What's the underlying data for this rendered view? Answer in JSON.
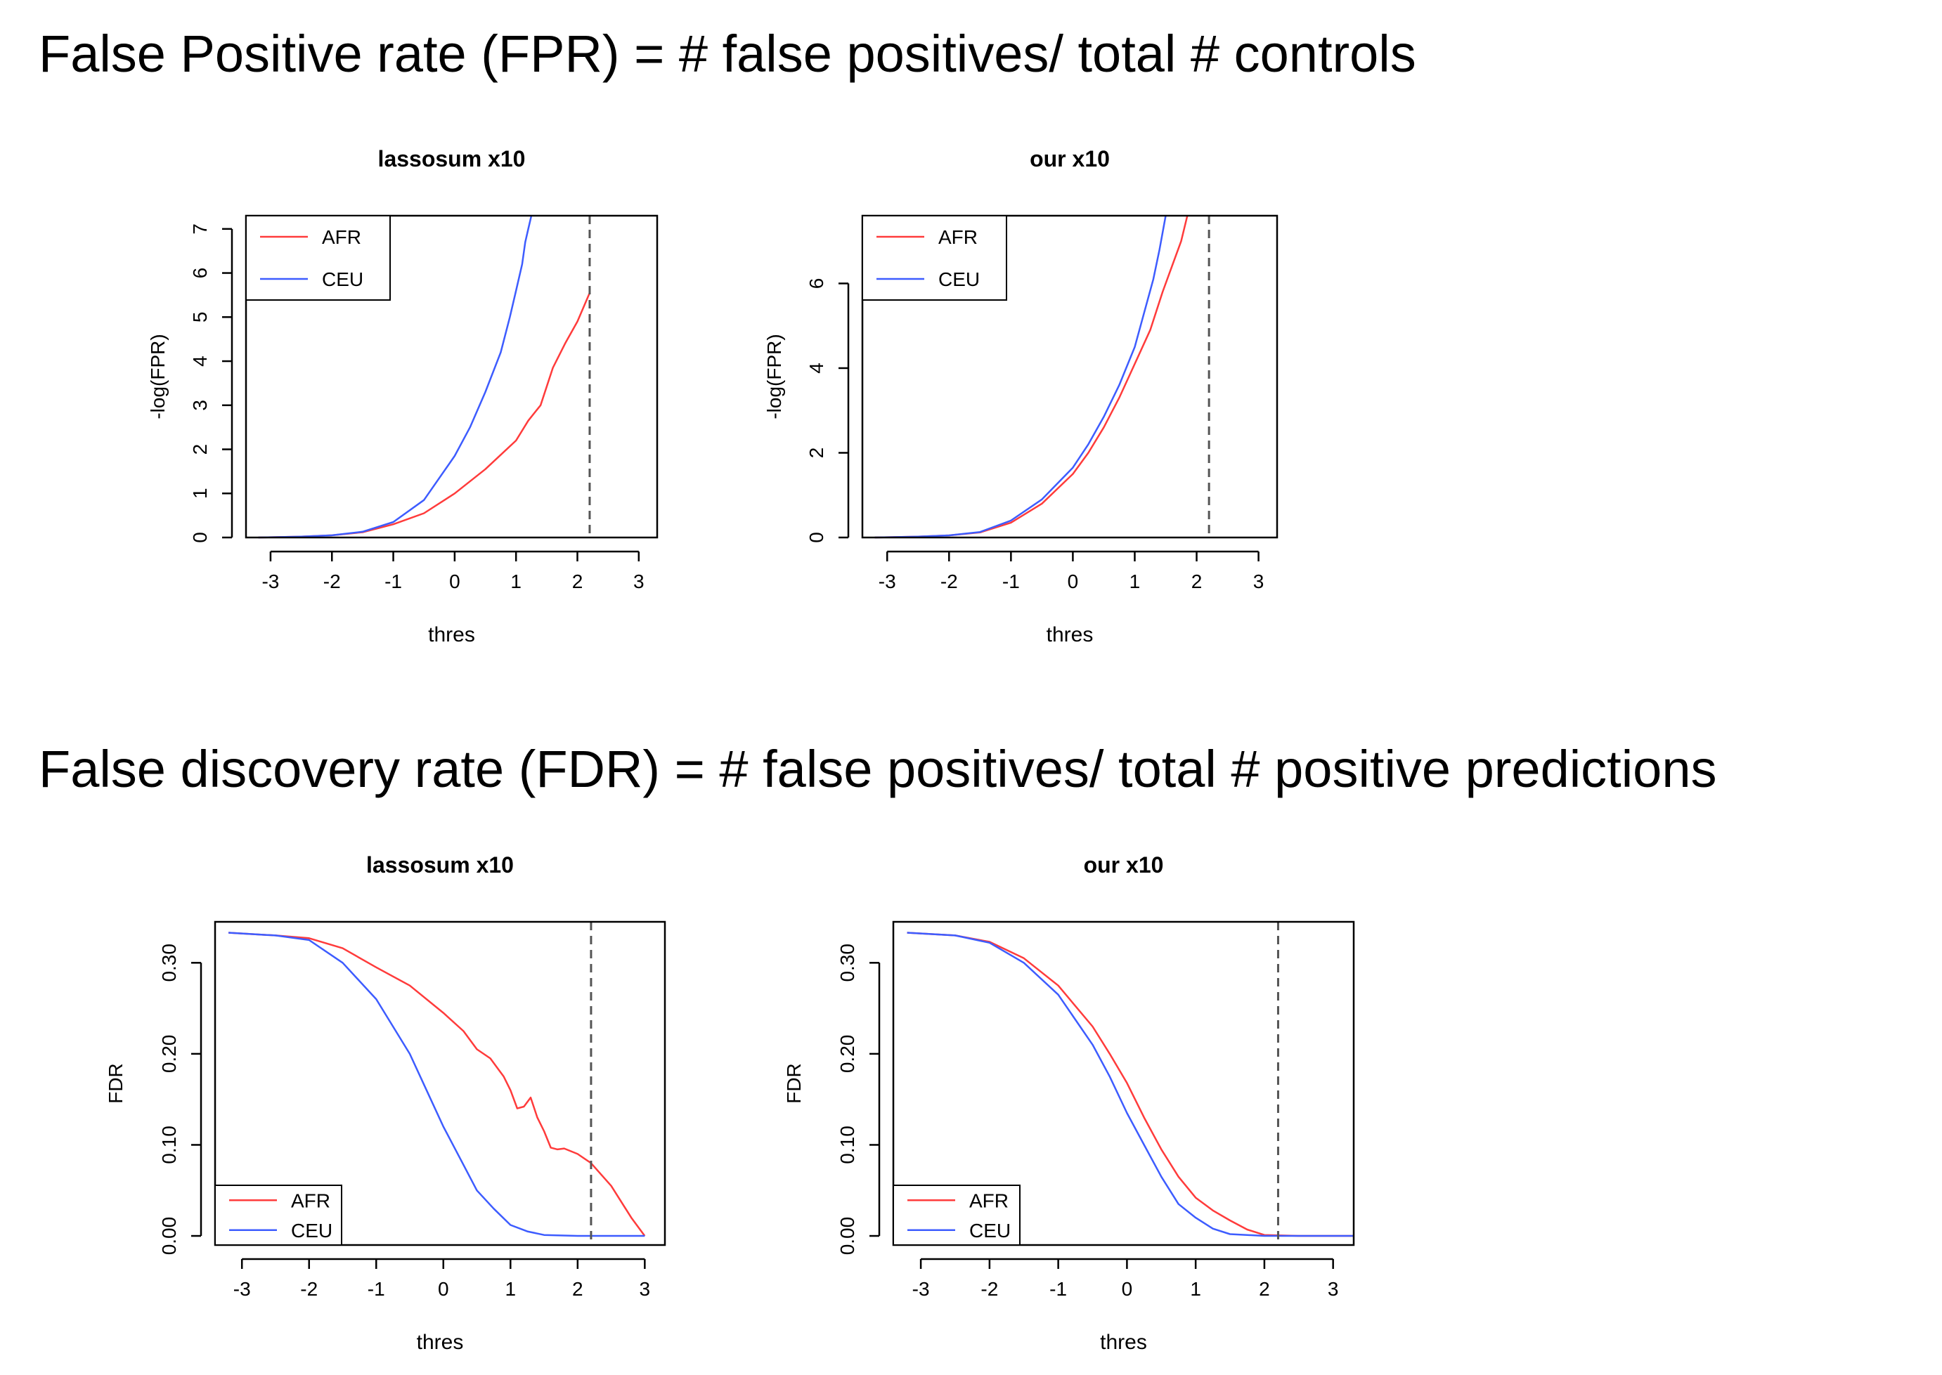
{
  "headlines": {
    "fpr": "False Positive rate (FPR) = # false positives/ total # controls",
    "fdr": "False discovery rate (FDR) = # false positives/ total # positive predictions"
  },
  "colors": {
    "AFR": "#ff3b3b",
    "CEU": "#3d5cff",
    "threshold": "#555555",
    "frame": "#000000"
  },
  "chart_data": [
    {
      "type": "line",
      "title": "lassosum x10",
      "xlabel": "thres",
      "ylabel": "-log(FPR)",
      "xlim": [
        -3.4,
        3.3
      ],
      "ylim": [
        0,
        7.3
      ],
      "xticks": [
        "-3",
        "-2",
        "-1",
        "0",
        "1",
        "2",
        "3"
      ],
      "yticks": [
        "0",
        "1",
        "2",
        "3",
        "4",
        "5",
        "6",
        "7"
      ],
      "threshold_line": 2.2,
      "legend": {
        "position": "top-left",
        "entries": [
          "AFR",
          "CEU"
        ]
      },
      "series": [
        {
          "name": "AFR",
          "x": [
            -3.2,
            -2.5,
            -2.0,
            -1.5,
            -1.0,
            -0.5,
            0.0,
            0.5,
            1.0,
            1.2,
            1.4,
            1.6,
            1.8,
            2.0,
            2.2
          ],
          "y": [
            0,
            0.02,
            0.05,
            0.12,
            0.3,
            0.55,
            1.0,
            1.55,
            2.2,
            2.65,
            3.0,
            3.85,
            4.4,
            4.9,
            5.55
          ]
        },
        {
          "name": "CEU",
          "x": [
            -3.2,
            -2.5,
            -2.0,
            -1.5,
            -1.0,
            -0.5,
            0.0,
            0.25,
            0.5,
            0.75,
            0.9,
            1.0,
            1.1,
            1.15,
            1.2,
            1.25
          ],
          "y": [
            0,
            0.02,
            0.05,
            0.13,
            0.35,
            0.85,
            1.85,
            2.5,
            3.3,
            4.2,
            5.0,
            5.6,
            6.2,
            6.7,
            7.0,
            7.3
          ]
        }
      ]
    },
    {
      "type": "line",
      "title": "our x10",
      "xlabel": "thres",
      "ylabel": "-log(FPR)",
      "xlim": [
        -3.4,
        3.3
      ],
      "ylim": [
        0,
        7.6
      ],
      "xticks": [
        "-3",
        "-2",
        "-1",
        "0",
        "1",
        "2",
        "3"
      ],
      "yticks": [
        "0",
        "2",
        "4",
        "6"
      ],
      "threshold_line": 2.2,
      "legend": {
        "position": "top-left",
        "entries": [
          "AFR",
          "CEU"
        ]
      },
      "series": [
        {
          "name": "AFR",
          "x": [
            -3.2,
            -2.5,
            -2.0,
            -1.5,
            -1.0,
            -0.5,
            0.0,
            0.25,
            0.5,
            0.75,
            1.0,
            1.25,
            1.45,
            1.6,
            1.75,
            1.85
          ],
          "y": [
            0,
            0.02,
            0.05,
            0.12,
            0.35,
            0.8,
            1.5,
            2.0,
            2.6,
            3.3,
            4.1,
            4.9,
            5.8,
            6.4,
            7.0,
            7.6
          ]
        },
        {
          "name": "CEU",
          "x": [
            -3.2,
            -2.5,
            -2.0,
            -1.5,
            -1.0,
            -0.5,
            0.0,
            0.25,
            0.5,
            0.75,
            1.0,
            1.15,
            1.3,
            1.4,
            1.5
          ],
          "y": [
            0,
            0.02,
            0.05,
            0.13,
            0.4,
            0.9,
            1.65,
            2.2,
            2.85,
            3.6,
            4.5,
            5.3,
            6.1,
            6.8,
            7.6
          ]
        }
      ]
    },
    {
      "type": "line",
      "title": "lassosum x10",
      "xlabel": "thres",
      "ylabel": "FDR",
      "xlim": [
        -3.4,
        3.3
      ],
      "ylim": [
        -0.01,
        0.345
      ],
      "xticks": [
        "-3",
        "-2",
        "-1",
        "0",
        "1",
        "2",
        "3"
      ],
      "yticks": [
        "0.00",
        "0.10",
        "0.20",
        "0.30"
      ],
      "threshold_line": 2.2,
      "legend": {
        "position": "bottom-left",
        "entries": [
          "AFR",
          "CEU"
        ]
      },
      "series": [
        {
          "name": "AFR",
          "x": [
            -3.2,
            -2.5,
            -2.0,
            -1.5,
            -1.0,
            -0.5,
            0.0,
            0.3,
            0.5,
            0.7,
            0.9,
            1.0,
            1.1,
            1.2,
            1.3,
            1.4,
            1.5,
            1.6,
            1.7,
            1.8,
            2.0,
            2.2,
            2.5,
            2.8,
            3.0
          ],
          "y": [
            0.333,
            0.33,
            0.327,
            0.316,
            0.295,
            0.275,
            0.245,
            0.225,
            0.205,
            0.195,
            0.175,
            0.16,
            0.14,
            0.142,
            0.152,
            0.13,
            0.115,
            0.097,
            0.095,
            0.096,
            0.09,
            0.08,
            0.055,
            0.02,
            0.0
          ]
        },
        {
          "name": "CEU",
          "x": [
            -3.2,
            -2.5,
            -2.0,
            -1.5,
            -1.0,
            -0.5,
            -0.25,
            0.0,
            0.25,
            0.5,
            0.75,
            1.0,
            1.25,
            1.5,
            2.0,
            2.5,
            3.0
          ],
          "y": [
            0.333,
            0.33,
            0.325,
            0.3,
            0.26,
            0.2,
            0.16,
            0.12,
            0.085,
            0.05,
            0.03,
            0.012,
            0.005,
            0.001,
            0.0,
            0.0,
            0.0
          ]
        }
      ]
    },
    {
      "type": "line",
      "title": "our x10",
      "xlabel": "thres",
      "ylabel": "FDR",
      "xlim": [
        -3.4,
        3.3
      ],
      "ylim": [
        -0.01,
        0.345
      ],
      "xticks": [
        "-3",
        "-2",
        "-1",
        "0",
        "1",
        "2",
        "3"
      ],
      "yticks": [
        "0.00",
        "0.10",
        "0.20",
        "0.30"
      ],
      "threshold_line": 2.2,
      "legend": {
        "position": "bottom-left",
        "entries": [
          "AFR",
          "CEU"
        ]
      },
      "series": [
        {
          "name": "AFR",
          "x": [
            -3.2,
            -2.5,
            -2.0,
            -1.5,
            -1.0,
            -0.5,
            -0.25,
            0.0,
            0.25,
            0.5,
            0.75,
            1.0,
            1.25,
            1.5,
            1.75,
            2.0,
            2.5,
            3.0,
            3.3
          ],
          "y": [
            0.333,
            0.33,
            0.323,
            0.305,
            0.275,
            0.23,
            0.2,
            0.168,
            0.13,
            0.095,
            0.065,
            0.042,
            0.028,
            0.017,
            0.007,
            0.001,
            0.0,
            0.0,
            0.0
          ]
        },
        {
          "name": "CEU",
          "x": [
            -3.2,
            -2.5,
            -2.0,
            -1.5,
            -1.0,
            -0.5,
            -0.25,
            0.0,
            0.25,
            0.5,
            0.75,
            1.0,
            1.25,
            1.5,
            2.0,
            2.5,
            3.0,
            3.3
          ],
          "y": [
            0.333,
            0.33,
            0.322,
            0.3,
            0.265,
            0.21,
            0.175,
            0.135,
            0.1,
            0.065,
            0.035,
            0.02,
            0.008,
            0.002,
            0.0,
            0.0,
            0.0,
            0.0
          ]
        }
      ]
    }
  ]
}
